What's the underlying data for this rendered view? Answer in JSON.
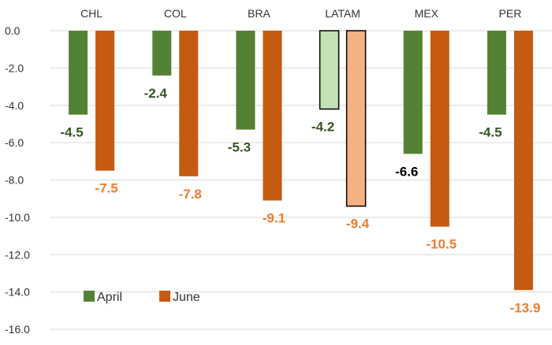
{
  "chart_data": {
    "type": "bar",
    "categories": [
      "CHL",
      "COL",
      "BRA",
      "LATAM",
      "MEX",
      "PER"
    ],
    "series": [
      {
        "name": "April",
        "values": [
          -4.5,
          -2.4,
          -5.3,
          -4.2,
          -6.6,
          -4.5
        ],
        "color": "#548235",
        "highlight_color": "#c5e0b4"
      },
      {
        "name": "June",
        "values": [
          -7.5,
          -7.8,
          -9.1,
          -9.4,
          -10.5,
          -13.9
        ],
        "color": "#c55a11",
        "highlight_color": "#f4b183"
      }
    ],
    "highlight_category": "LATAM",
    "data_label_colors": {
      "April": "#375623",
      "June": "#ed7d31",
      "MEX_April": "#000000"
    },
    "data_labels": {
      "April": [
        "-4.5",
        "-2.4",
        "-5.3",
        "-4.2",
        "-6.6",
        "-4.5"
      ],
      "June": [
        "-7.5",
        "-7.8",
        "-9.1",
        "-9.4",
        "-10.5",
        "-13.9"
      ]
    },
    "ylim": [
      -16,
      0
    ],
    "yticks": [
      "0.0",
      "-2.0",
      "-4.0",
      "-6.0",
      "-8.0",
      "-10.0",
      "-12.0",
      "-14.0",
      "-16.0"
    ],
    "ytick_values": [
      0,
      -2,
      -4,
      -6,
      -8,
      -10,
      -12,
      -14,
      -16
    ],
    "grid": true,
    "legend_position": "bottom-left",
    "title": "",
    "xlabel": "",
    "ylabel": ""
  }
}
